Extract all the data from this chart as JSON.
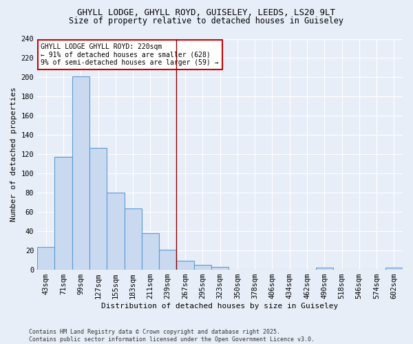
{
  "title1": "GHYLL LODGE, GHYLL ROYD, GUISELEY, LEEDS, LS20 9LT",
  "title2": "Size of property relative to detached houses in Guiseley",
  "xlabel": "Distribution of detached houses by size in Guiseley",
  "ylabel": "Number of detached properties",
  "bar_labels": [
    "43sqm",
    "71sqm",
    "99sqm",
    "127sqm",
    "155sqm",
    "183sqm",
    "211sqm",
    "239sqm",
    "267sqm",
    "295sqm",
    "323sqm",
    "350sqm",
    "378sqm",
    "406sqm",
    "434sqm",
    "462sqm",
    "490sqm",
    "518sqm",
    "546sqm",
    "574sqm",
    "602sqm"
  ],
  "bar_values": [
    24,
    117,
    201,
    127,
    80,
    64,
    38,
    21,
    9,
    5,
    3,
    0,
    0,
    0,
    0,
    0,
    2,
    0,
    0,
    0,
    2
  ],
  "bar_color": "#c9d9f0",
  "bar_edge_color": "#5b9bd5",
  "vline_x": 7.5,
  "vline_color": "#8b0000",
  "annotation_text": "GHYLL LODGE GHYLL ROYD: 220sqm\n← 91% of detached houses are smaller (628)\n9% of semi-detached houses are larger (59) →",
  "annotation_box_color": "white",
  "annotation_edge_color": "#cc0000",
  "footer_text": "Contains HM Land Registry data © Crown copyright and database right 2025.\nContains public sector information licensed under the Open Government Licence v3.0.",
  "ylim": [
    0,
    240
  ],
  "yticks": [
    0,
    20,
    40,
    60,
    80,
    100,
    120,
    140,
    160,
    180,
    200,
    220,
    240
  ],
  "bg_color": "#e8eef8",
  "grid_color": "#ffffff",
  "title_fontsize": 9,
  "subtitle_fontsize": 8.5,
  "ylabel_fontsize": 8,
  "xlabel_fontsize": 8,
  "tick_fontsize": 7.5,
  "annot_fontsize": 7,
  "footer_fontsize": 6
}
